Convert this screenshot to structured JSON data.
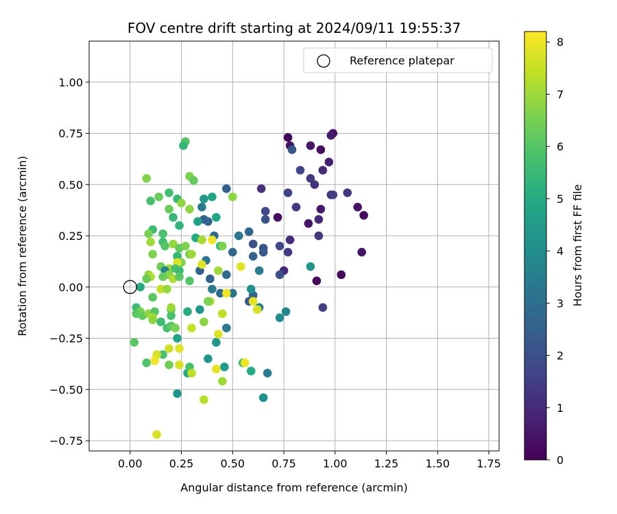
{
  "chart_data": {
    "type": "scatter",
    "title": "FOV centre drift starting at 2024/09/11 19:55:37",
    "xlabel": "Angular distance from reference (arcmin)",
    "ylabel": "Rotation from reference (arcmin)",
    "xlim": [
      -0.2,
      1.8
    ],
    "ylim": [
      -0.8,
      1.2
    ],
    "x_ticks": [
      0,
      0.25,
      0.5,
      0.75,
      1.0,
      1.25,
      1.5,
      1.75
    ],
    "x_tick_labels": [
      "0.00",
      "0.25",
      "0.50",
      "0.75",
      "1.00",
      "1.25",
      "1.50",
      "1.75"
    ],
    "y_ticks": [
      -0.75,
      -0.5,
      -0.25,
      0,
      0.25,
      0.5,
      0.75,
      1.0
    ],
    "y_tick_labels": [
      "−0.75",
      "−0.50",
      "−0.25",
      "0.00",
      "0.25",
      "0.50",
      "0.75",
      "1.00"
    ],
    "grid": true,
    "legend": {
      "position": "top-right",
      "entries": [
        "Reference platepar"
      ]
    },
    "colorbar": {
      "label": "Hours from first FF file",
      "colormap": "viridis",
      "range": [
        0,
        8.2
      ],
      "ticks": [
        0,
        1,
        2,
        3,
        4,
        5,
        6,
        7,
        8
      ],
      "tick_labels": [
        "0",
        "1",
        "2",
        "3",
        "4",
        "5",
        "6",
        "7",
        "8"
      ]
    },
    "reference_point": {
      "x": 0,
      "y": 0
    },
    "points": [
      {
        "x": 0.77,
        "y": 0.73,
        "c": 0.1
      },
      {
        "x": 0.99,
        "y": 0.75,
        "c": 0.3
      },
      {
        "x": 0.98,
        "y": 0.74,
        "c": 0.6
      },
      {
        "x": 0.78,
        "y": 0.69,
        "c": 0.4
      },
      {
        "x": 0.79,
        "y": 0.67,
        "c": 2.2
      },
      {
        "x": 0.88,
        "y": 0.69,
        "c": 0.5
      },
      {
        "x": 0.93,
        "y": 0.67,
        "c": 0.3
      },
      {
        "x": 0.97,
        "y": 0.61,
        "c": 0.7
      },
      {
        "x": 0.94,
        "y": 0.57,
        "c": 1.0
      },
      {
        "x": 0.83,
        "y": 0.57,
        "c": 1.7
      },
      {
        "x": 0.88,
        "y": 0.53,
        "c": 1.4
      },
      {
        "x": 0.9,
        "y": 0.5,
        "c": 1.2
      },
      {
        "x": 0.98,
        "y": 0.45,
        "c": 1.2
      },
      {
        "x": 0.99,
        "y": 0.45,
        "c": 1.5
      },
      {
        "x": 1.06,
        "y": 0.46,
        "c": 1.3
      },
      {
        "x": 0.77,
        "y": 0.46,
        "c": 1.6
      },
      {
        "x": 0.64,
        "y": 0.48,
        "c": 1.1
      },
      {
        "x": 0.81,
        "y": 0.39,
        "c": 1.4
      },
      {
        "x": 0.93,
        "y": 0.38,
        "c": 0.6
      },
      {
        "x": 1.11,
        "y": 0.39,
        "c": 0.4
      },
      {
        "x": 1.14,
        "y": 0.35,
        "c": 0.2
      },
      {
        "x": 0.66,
        "y": 0.37,
        "c": 1.8
      },
      {
        "x": 0.66,
        "y": 0.33,
        "c": 2.0
      },
      {
        "x": 0.72,
        "y": 0.34,
        "c": 0.3
      },
      {
        "x": 0.92,
        "y": 0.33,
        "c": 0.9
      },
      {
        "x": 0.87,
        "y": 0.31,
        "c": 0.5
      },
      {
        "x": 0.92,
        "y": 0.25,
        "c": 1.3
      },
      {
        "x": 0.78,
        "y": 0.23,
        "c": 1.0
      },
      {
        "x": 0.73,
        "y": 0.2,
        "c": 1.8
      },
      {
        "x": 0.77,
        "y": 0.17,
        "c": 1.4
      },
      {
        "x": 1.13,
        "y": 0.17,
        "c": 0.5
      },
      {
        "x": 0.75,
        "y": 0.08,
        "c": 1.0
      },
      {
        "x": 0.73,
        "y": 0.06,
        "c": 2.0
      },
      {
        "x": 0.91,
        "y": 0.03,
        "c": 0.2
      },
      {
        "x": 1.03,
        "y": 0.06,
        "c": 0.2
      },
      {
        "x": 0.94,
        "y": -0.1,
        "c": 1.5
      },
      {
        "x": 0.88,
        "y": 0.1,
        "c": 4.2
      },
      {
        "x": 0.65,
        "y": 0.19,
        "c": 2.1
      },
      {
        "x": 0.65,
        "y": 0.17,
        "c": 2.3
      },
      {
        "x": 0.6,
        "y": 0.21,
        "c": 2.0
      },
      {
        "x": 0.6,
        "y": 0.15,
        "c": 2.6
      },
      {
        "x": 0.58,
        "y": 0.27,
        "c": 2.8
      },
      {
        "x": 0.53,
        "y": 0.25,
        "c": 3.2
      },
      {
        "x": 0.5,
        "y": 0.17,
        "c": 2.7
      },
      {
        "x": 0.63,
        "y": 0.08,
        "c": 3.4
      },
      {
        "x": 0.47,
        "y": 0.48,
        "c": 2.5
      },
      {
        "x": 0.58,
        "y": -0.07,
        "c": 2.4
      },
      {
        "x": 0.6,
        "y": -0.04,
        "c": 2.6
      },
      {
        "x": 0.63,
        "y": -0.1,
        "c": 3.5
      },
      {
        "x": 0.59,
        "y": -0.01,
        "c": 4.0
      },
      {
        "x": 0.76,
        "y": -0.12,
        "c": 3.7
      },
      {
        "x": 0.73,
        "y": -0.15,
        "c": 4.0
      },
      {
        "x": 0.67,
        "y": -0.42,
        "c": 3.4
      },
      {
        "x": 0.65,
        "y": -0.54,
        "c": 4.1
      },
      {
        "x": 0.59,
        "y": -0.41,
        "c": 5.0
      },
      {
        "x": 0.55,
        "y": -0.37,
        "c": 5.4
      },
      {
        "x": 0.5,
        "y": -0.03,
        "c": 3.1
      },
      {
        "x": 0.47,
        "y": 0.06,
        "c": 2.8
      },
      {
        "x": 0.44,
        "y": -0.03,
        "c": 2.9
      },
      {
        "x": 0.4,
        "y": -0.01,
        "c": 3.4
      },
      {
        "x": 0.39,
        "y": 0.04,
        "c": 2.6
      },
      {
        "x": 0.47,
        "y": -0.2,
        "c": 3.3
      },
      {
        "x": 0.42,
        "y": -0.27,
        "c": 4.3
      },
      {
        "x": 0.46,
        "y": -0.39,
        "c": 4.5
      },
      {
        "x": 0.38,
        "y": -0.35,
        "c": 4.3
      },
      {
        "x": 0.34,
        "y": -0.11,
        "c": 4.3
      },
      {
        "x": 0.37,
        "y": 0.13,
        "c": 3.2
      },
      {
        "x": 0.34,
        "y": 0.08,
        "c": 2.6
      },
      {
        "x": 0.36,
        "y": 0.33,
        "c": 2.4
      },
      {
        "x": 0.38,
        "y": 0.32,
        "c": 2.7
      },
      {
        "x": 0.41,
        "y": 0.25,
        "c": 2.8
      },
      {
        "x": 0.35,
        "y": 0.39,
        "c": 3.3
      },
      {
        "x": 0.36,
        "y": 0.43,
        "c": 4.4
      },
      {
        "x": 0.4,
        "y": 0.44,
        "c": 4.8
      },
      {
        "x": 0.33,
        "y": 0.32,
        "c": 4.6
      },
      {
        "x": 0.32,
        "y": 0.24,
        "c": 5.0
      },
      {
        "x": 0.42,
        "y": 0.34,
        "c": 4.8
      },
      {
        "x": 0.44,
        "y": 0.2,
        "c": 5.3
      },
      {
        "x": 0.45,
        "y": 0.2,
        "c": 6.6
      },
      {
        "x": 0.5,
        "y": 0.44,
        "c": 6.8
      },
      {
        "x": 0.29,
        "y": 0.54,
        "c": 6.6
      },
      {
        "x": 0.31,
        "y": 0.52,
        "c": 6.2
      },
      {
        "x": 0.27,
        "y": 0.71,
        "c": 6.0
      },
      {
        "x": 0.26,
        "y": 0.69,
        "c": 5.4
      },
      {
        "x": 0.19,
        "y": 0.46,
        "c": 5.7
      },
      {
        "x": 0.23,
        "y": 0.43,
        "c": 5.5
      },
      {
        "x": 0.25,
        "y": 0.41,
        "c": 6.8
      },
      {
        "x": 0.08,
        "y": 0.53,
        "c": 6.7
      },
      {
        "x": 0.14,
        "y": 0.44,
        "c": 6.3
      },
      {
        "x": 0.1,
        "y": 0.42,
        "c": 5.8
      },
      {
        "x": 0.19,
        "y": 0.38,
        "c": 6.3
      },
      {
        "x": 0.29,
        "y": 0.38,
        "c": 6.8
      },
      {
        "x": 0.21,
        "y": 0.34,
        "c": 5.4
      },
      {
        "x": 0.24,
        "y": 0.3,
        "c": 5.3
      },
      {
        "x": 0.11,
        "y": 0.28,
        "c": 5.6
      },
      {
        "x": 0.09,
        "y": 0.26,
        "c": 6.5
      },
      {
        "x": 0.1,
        "y": 0.22,
        "c": 7.0
      },
      {
        "x": 0.16,
        "y": 0.26,
        "c": 5.8
      },
      {
        "x": 0.16,
        "y": 0.22,
        "c": 5.7
      },
      {
        "x": 0.17,
        "y": 0.2,
        "c": 6.0
      },
      {
        "x": 0.21,
        "y": 0.21,
        "c": 6.9
      },
      {
        "x": 0.24,
        "y": 0.19,
        "c": 6.2
      },
      {
        "x": 0.27,
        "y": 0.2,
        "c": 6.6
      },
      {
        "x": 0.29,
        "y": 0.16,
        "c": 6.4
      },
      {
        "x": 0.3,
        "y": 0.16,
        "c": 7.0
      },
      {
        "x": 0.23,
        "y": 0.15,
        "c": 5.4
      },
      {
        "x": 0.25,
        "y": 0.12,
        "c": 6.6
      },
      {
        "x": 0.23,
        "y": 0.12,
        "c": 7.7
      },
      {
        "x": 0.11,
        "y": 0.16,
        "c": 6.6
      },
      {
        "x": 0.15,
        "y": 0.1,
        "c": 6.4
      },
      {
        "x": 0.19,
        "y": 0.09,
        "c": 7.0
      },
      {
        "x": 0.17,
        "y": 0.08,
        "c": 3.6
      },
      {
        "x": 0.22,
        "y": 0.09,
        "c": 5.8
      },
      {
        "x": 0.24,
        "y": 0.08,
        "c": 5.6
      },
      {
        "x": 0.19,
        "y": 0.06,
        "c": 6.7
      },
      {
        "x": 0.16,
        "y": 0.05,
        "c": 6.3
      },
      {
        "x": 0.09,
        "y": 0.06,
        "c": 6.8
      },
      {
        "x": 0.1,
        "y": 0.05,
        "c": 7.2
      },
      {
        "x": 0.08,
        "y": 0.04,
        "c": 6.3
      },
      {
        "x": 0.21,
        "y": 0.04,
        "c": 7.2
      },
      {
        "x": 0.24,
        "y": 0.05,
        "c": 6.1
      },
      {
        "x": 0.29,
        "y": 0.03,
        "c": 6.0
      },
      {
        "x": 0.05,
        "y": 0.0,
        "c": 5.0
      },
      {
        "x": 0.15,
        "y": -0.01,
        "c": 7.5
      },
      {
        "x": 0.18,
        "y": -0.01,
        "c": 6.9
      },
      {
        "x": 0.11,
        "y": -0.05,
        "c": 6.1
      },
      {
        "x": 0.03,
        "y": -0.1,
        "c": 5.6
      },
      {
        "x": 0.05,
        "y": -0.12,
        "c": 6.6
      },
      {
        "x": 0.03,
        "y": -0.13,
        "c": 6.1
      },
      {
        "x": 0.06,
        "y": -0.14,
        "c": 6.2
      },
      {
        "x": 0.09,
        "y": -0.13,
        "c": 6.8
      },
      {
        "x": 0.12,
        "y": -0.12,
        "c": 6.0
      },
      {
        "x": 0.11,
        "y": -0.15,
        "c": 7.3
      },
      {
        "x": 0.11,
        "y": -0.16,
        "c": 6.8
      },
      {
        "x": 0.15,
        "y": -0.17,
        "c": 5.6
      },
      {
        "x": 0.2,
        "y": -0.14,
        "c": 5.8
      },
      {
        "x": 0.2,
        "y": -0.11,
        "c": 6.0
      },
      {
        "x": 0.2,
        "y": -0.1,
        "c": 7.0
      },
      {
        "x": 0.18,
        "y": -0.2,
        "c": 5.8
      },
      {
        "x": 0.2,
        "y": -0.19,
        "c": 6.1
      },
      {
        "x": 0.22,
        "y": -0.2,
        "c": 6.5
      },
      {
        "x": 0.23,
        "y": -0.25,
        "c": 4.7
      },
      {
        "x": 0.02,
        "y": -0.27,
        "c": 6.1
      },
      {
        "x": 0.19,
        "y": -0.3,
        "c": 7.6
      },
      {
        "x": 0.24,
        "y": -0.3,
        "c": 7.8
      },
      {
        "x": 0.16,
        "y": -0.33,
        "c": 5.8
      },
      {
        "x": 0.13,
        "y": -0.33,
        "c": 7.7
      },
      {
        "x": 0.12,
        "y": -0.36,
        "c": 8.0
      },
      {
        "x": 0.08,
        "y": -0.37,
        "c": 5.9
      },
      {
        "x": 0.19,
        "y": -0.38,
        "c": 6.4
      },
      {
        "x": 0.24,
        "y": -0.38,
        "c": 7.7
      },
      {
        "x": 0.28,
        "y": -0.42,
        "c": 5.0
      },
      {
        "x": 0.29,
        "y": -0.39,
        "c": 5.8
      },
      {
        "x": 0.3,
        "y": -0.42,
        "c": 7.4
      },
      {
        "x": 0.23,
        "y": -0.52,
        "c": 4.2
      },
      {
        "x": 0.13,
        "y": -0.72,
        "c": 7.7
      },
      {
        "x": 0.28,
        "y": -0.12,
        "c": 5.0
      },
      {
        "x": 0.3,
        "y": -0.2,
        "c": 7.5
      },
      {
        "x": 0.36,
        "y": -0.17,
        "c": 6.8
      },
      {
        "x": 0.35,
        "y": 0.11,
        "c": 7.8
      },
      {
        "x": 0.35,
        "y": 0.23,
        "c": 7.1
      },
      {
        "x": 0.4,
        "y": 0.23,
        "c": 8.0
      },
      {
        "x": 0.39,
        "y": -0.07,
        "c": 7.2
      },
      {
        "x": 0.38,
        "y": -0.07,
        "c": 6.6
      },
      {
        "x": 0.43,
        "y": -0.23,
        "c": 7.8
      },
      {
        "x": 0.45,
        "y": -0.13,
        "c": 7.4
      },
      {
        "x": 0.42,
        "y": -0.4,
        "c": 7.9
      },
      {
        "x": 0.45,
        "y": -0.46,
        "c": 7.0
      },
      {
        "x": 0.36,
        "y": -0.55,
        "c": 7.3
      },
      {
        "x": 0.47,
        "y": -0.03,
        "c": 8.0
      },
      {
        "x": 0.43,
        "y": 0.08,
        "c": 7.0
      },
      {
        "x": 0.54,
        "y": 0.1,
        "c": 7.8
      },
      {
        "x": 0.56,
        "y": -0.37,
        "c": 8.1
      },
      {
        "x": 0.6,
        "y": -0.07,
        "c": 7.9
      },
      {
        "x": 0.62,
        "y": -0.11,
        "c": 7.7
      }
    ]
  }
}
